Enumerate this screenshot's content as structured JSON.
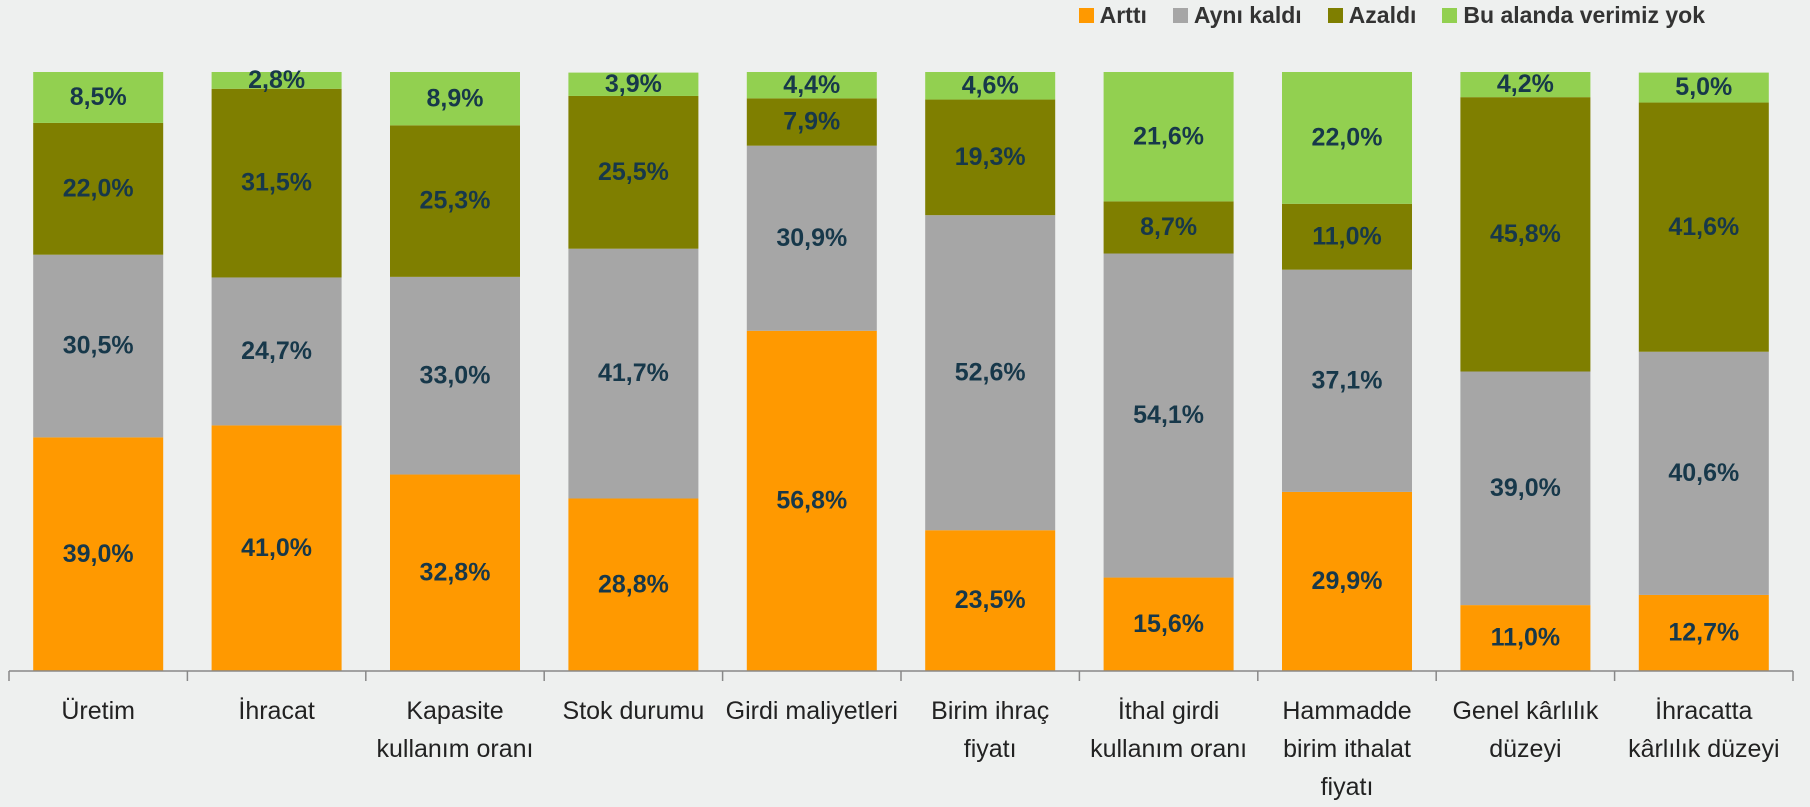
{
  "chart_data": {
    "type": "stacked_bar",
    "categories": [
      "Üretim",
      "İhracat",
      "Kapasite kullanım oranı",
      "Stok durumu",
      "Girdi maliyetleri",
      "Birim ihraç fiyatı",
      "İthal girdi kullanım oranı",
      "Hammadde birim ithalat fiyatı",
      "Genel kârlılık düzeyi",
      "İhracatta kârlılık düzeyi"
    ],
    "ylim": [
      0,
      100
    ],
    "series": [
      {
        "name": "Arttı",
        "color": "#ff9900",
        "values": [
          39.0,
          41.0,
          32.8,
          28.8,
          56.8,
          23.5,
          15.6,
          29.9,
          11.0,
          12.7
        ],
        "value_labels": [
          "39,0%",
          "41,0%",
          "32,8%",
          "28,8%",
          "56,8%",
          "23,5%",
          "15,6%",
          "29,9%",
          "11,0%",
          "12,7%"
        ]
      },
      {
        "name": "Aynı kaldı",
        "color": "#a6a6a6",
        "values": [
          30.5,
          24.7,
          33.0,
          41.7,
          30.9,
          52.6,
          54.1,
          37.1,
          39.0,
          40.6
        ],
        "value_labels": [
          "30,5%",
          "24,7%",
          "33,0%",
          "41,7%",
          "30,9%",
          "52,6%",
          "54,1%",
          "37,1%",
          "39,0%",
          "40,6%"
        ]
      },
      {
        "name": "Azaldı",
        "color": "#7f7f00",
        "values": [
          22.0,
          31.5,
          25.3,
          25.5,
          7.9,
          19.3,
          8.7,
          11.0,
          45.8,
          41.6
        ],
        "value_labels": [
          "22,0%",
          "31,5%",
          "25,3%",
          "25,5%",
          "7,9%",
          "19,3%",
          "8,7%",
          "11,0%",
          "45,8%",
          "41,6%"
        ]
      },
      {
        "name": "Bu alanda verimiz yok",
        "color": "#92d050",
        "values": [
          8.5,
          2.8,
          8.9,
          3.9,
          4.4,
          4.6,
          21.6,
          22.0,
          4.2,
          5.0
        ],
        "value_labels": [
          "8,5%",
          "2,8%",
          "8,9%",
          "3,9%",
          "4,4%",
          "4,6%",
          "21,6%",
          "22,0%",
          "4,2%",
          "5,0%"
        ]
      }
    ],
    "legend": "top-right"
  }
}
